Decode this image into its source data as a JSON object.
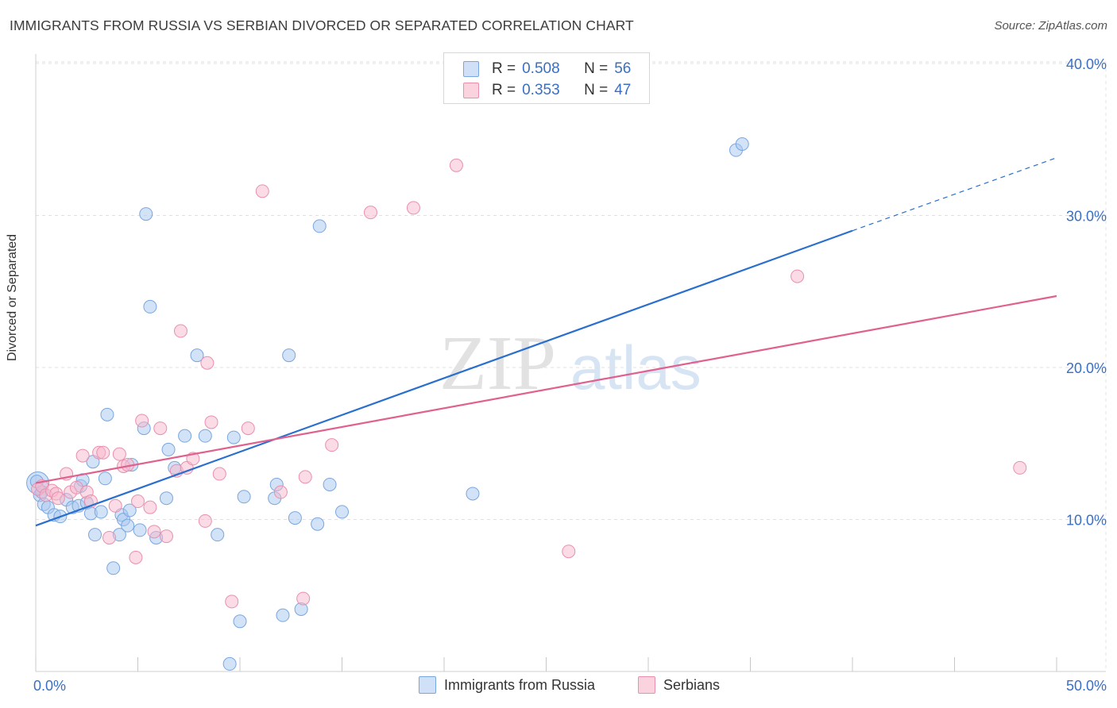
{
  "title": "IMMIGRANTS FROM RUSSIA VS SERBIAN DIVORCED OR SEPARATED CORRELATION CHART",
  "source": "Source: ZipAtlas.com",
  "watermark": {
    "zip": "ZIP",
    "atlas": "atlas"
  },
  "legend_top": [
    {
      "r_label": "R =",
      "r_value": "0.508",
      "n_label": "N =",
      "n_value": "56",
      "color": "#a8c8f0"
    },
    {
      "r_label": "R =",
      "r_value": "0.353",
      "n_label": "N =",
      "n_value": "47",
      "color": "#f7b8cc"
    }
  ],
  "legend_bottom": [
    {
      "label": "Immigrants from Russia",
      "color": "#a8c8f0"
    },
    {
      "label": "Serbians",
      "color": "#f7b8cc"
    }
  ],
  "chart_data": {
    "type": "scatter",
    "title": "IMMIGRANTS FROM RUSSIA VS SERBIAN DIVORCED OR SEPARATED CORRELATION CHART",
    "xlabel": "",
    "ylabel": "Divorced or Separated",
    "xlim": [
      0,
      50
    ],
    "ylim": [
      0,
      42
    ],
    "x_tick_labels": [
      {
        "value": 0,
        "label": "0.0%"
      },
      {
        "value": 50,
        "label": "50.0%"
      }
    ],
    "y_tick_labels": [
      {
        "value": 10,
        "label": "10.0%"
      },
      {
        "value": 20,
        "label": "20.0%"
      },
      {
        "value": 30,
        "label": "30.0%"
      },
      {
        "value": 40,
        "label": "40.0%"
      }
    ],
    "grid": true,
    "series": [
      {
        "name": "Immigrants from Russia",
        "color": "#a8c8f0",
        "stroke": "#7aa6df",
        "line_color": "#2a6fce",
        "trend": {
          "x0": 0,
          "y0": 9.6,
          "x1": 40,
          "y1": 29.0,
          "dash_to_x": 50,
          "dash_to_y": 33.8
        },
        "points": [
          [
            0.1,
            12.4
          ],
          [
            0.2,
            11.6
          ],
          [
            0.4,
            11.0
          ],
          [
            0.6,
            10.8
          ],
          [
            0.9,
            10.3
          ],
          [
            1.2,
            10.2
          ],
          [
            1.5,
            11.3
          ],
          [
            1.8,
            10.8
          ],
          [
            2.1,
            10.9
          ],
          [
            2.2,
            12.2
          ],
          [
            2.3,
            12.6
          ],
          [
            2.5,
            11.1
          ],
          [
            2.7,
            10.4
          ],
          [
            2.8,
            13.8
          ],
          [
            2.9,
            9.0
          ],
          [
            3.2,
            10.5
          ],
          [
            3.4,
            12.7
          ],
          [
            3.5,
            16.9
          ],
          [
            3.8,
            6.8
          ],
          [
            4.1,
            9.0
          ],
          [
            4.2,
            10.3
          ],
          [
            4.3,
            10.0
          ],
          [
            4.5,
            9.6
          ],
          [
            4.6,
            10.6
          ],
          [
            4.7,
            13.6
          ],
          [
            5.1,
            9.3
          ],
          [
            5.3,
            16.0
          ],
          [
            5.4,
            30.1
          ],
          [
            5.6,
            24.0
          ],
          [
            5.9,
            8.8
          ],
          [
            6.4,
            11.4
          ],
          [
            6.5,
            14.6
          ],
          [
            6.8,
            13.4
          ],
          [
            7.3,
            15.5
          ],
          [
            7.9,
            20.8
          ],
          [
            8.3,
            15.5
          ],
          [
            8.9,
            9.0
          ],
          [
            9.5,
            0.5
          ],
          [
            9.7,
            15.4
          ],
          [
            10.0,
            3.3
          ],
          [
            10.2,
            11.5
          ],
          [
            11.7,
            11.4
          ],
          [
            11.8,
            12.3
          ],
          [
            12.1,
            3.7
          ],
          [
            12.4,
            20.8
          ],
          [
            12.7,
            10.1
          ],
          [
            13.0,
            4.1
          ],
          [
            13.8,
            9.7
          ],
          [
            13.9,
            29.3
          ],
          [
            14.4,
            12.3
          ],
          [
            15.0,
            10.5
          ],
          [
            21.4,
            11.7
          ],
          [
            34.3,
            34.3
          ],
          [
            34.6,
            34.7
          ],
          [
            0.05,
            12.5
          ],
          [
            0.3,
            11.8
          ]
        ]
      },
      {
        "name": "Serbians",
        "color": "#f7b8cc",
        "stroke": "#ea8fae",
        "line_color": "#e0608e",
        "trend": {
          "x0": 0,
          "y0": 12.4,
          "x1": 50,
          "y1": 24.7
        },
        "points": [
          [
            0.1,
            12.0
          ],
          [
            0.3,
            12.2
          ],
          [
            0.5,
            11.6
          ],
          [
            0.8,
            11.9
          ],
          [
            1.0,
            11.7
          ],
          [
            1.1,
            11.4
          ],
          [
            1.5,
            13.0
          ],
          [
            1.7,
            11.8
          ],
          [
            2.0,
            12.1
          ],
          [
            2.3,
            14.2
          ],
          [
            2.5,
            11.8
          ],
          [
            2.7,
            11.2
          ],
          [
            3.1,
            14.4
          ],
          [
            3.3,
            14.4
          ],
          [
            3.6,
            8.8
          ],
          [
            3.9,
            10.9
          ],
          [
            4.1,
            14.3
          ],
          [
            4.3,
            13.5
          ],
          [
            4.5,
            13.6
          ],
          [
            4.9,
            7.5
          ],
          [
            5.0,
            11.2
          ],
          [
            5.2,
            16.5
          ],
          [
            5.6,
            10.8
          ],
          [
            5.8,
            9.2
          ],
          [
            6.1,
            16.0
          ],
          [
            6.4,
            8.9
          ],
          [
            6.9,
            13.2
          ],
          [
            7.1,
            22.4
          ],
          [
            7.4,
            13.4
          ],
          [
            7.7,
            14.0
          ],
          [
            8.3,
            9.9
          ],
          [
            8.4,
            20.3
          ],
          [
            8.6,
            16.4
          ],
          [
            9.0,
            13.0
          ],
          [
            9.6,
            4.6
          ],
          [
            10.4,
            16.0
          ],
          [
            11.1,
            31.6
          ],
          [
            12.0,
            11.8
          ],
          [
            13.1,
            4.8
          ],
          [
            13.2,
            12.8
          ],
          [
            14.5,
            14.9
          ],
          [
            16.4,
            30.2
          ],
          [
            18.5,
            30.5
          ],
          [
            20.6,
            33.3
          ],
          [
            26.1,
            7.9
          ],
          [
            37.3,
            26.0
          ],
          [
            48.2,
            13.4
          ]
        ]
      }
    ]
  }
}
